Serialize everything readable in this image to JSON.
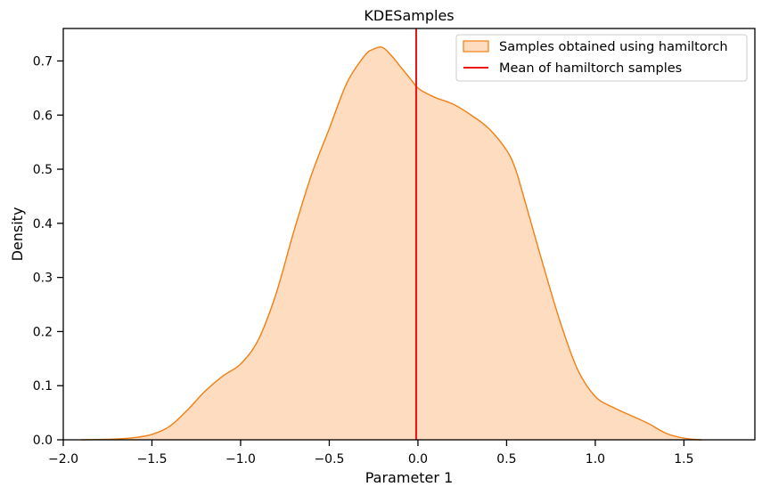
{
  "chart_data": {
    "type": "area",
    "title": "KDESamples",
    "xlabel": "Parameter 1",
    "ylabel": "Density",
    "xlim": [
      -2.0,
      1.9
    ],
    "ylim": [
      0.0,
      0.76
    ],
    "xticks": [
      -2.0,
      -1.5,
      -1.0,
      -0.5,
      0.0,
      0.5,
      1.0,
      1.5
    ],
    "xtick_labels": [
      "−2.0",
      "−1.5",
      "−1.0",
      "−0.5",
      "0.0",
      "0.5",
      "1.0",
      "1.5"
    ],
    "yticks": [
      0.0,
      0.1,
      0.2,
      0.3,
      0.4,
      0.5,
      0.6,
      0.7
    ],
    "ytick_labels": [
      "0.0",
      "0.1",
      "0.2",
      "0.3",
      "0.4",
      "0.5",
      "0.6",
      "0.7"
    ],
    "grid": false,
    "legend_position": "top-right",
    "series": [
      {
        "name": "Samples obtained using hamiltorch",
        "kind": "kde-fill",
        "line_color": "#f07f14",
        "fill_color": "#fedcbf",
        "x": [
          -1.9,
          -1.8,
          -1.7,
          -1.6,
          -1.5,
          -1.4,
          -1.3,
          -1.2,
          -1.1,
          -1.0,
          -0.9,
          -0.8,
          -0.7,
          -0.6,
          -0.5,
          -0.4,
          -0.3,
          -0.25,
          -0.2,
          -0.15,
          -0.1,
          -0.05,
          0.0,
          0.05,
          0.1,
          0.2,
          0.3,
          0.4,
          0.5,
          0.55,
          0.6,
          0.7,
          0.8,
          0.9,
          1.0,
          1.1,
          1.2,
          1.3,
          1.4,
          1.5,
          1.6
        ],
        "y": [
          0.0,
          0.0005,
          0.0015,
          0.004,
          0.01,
          0.025,
          0.055,
          0.09,
          0.118,
          0.14,
          0.185,
          0.27,
          0.385,
          0.49,
          0.575,
          0.66,
          0.71,
          0.722,
          0.725,
          0.71,
          0.69,
          0.67,
          0.65,
          0.64,
          0.632,
          0.62,
          0.6,
          0.575,
          0.535,
          0.5,
          0.445,
          0.33,
          0.22,
          0.13,
          0.08,
          0.06,
          0.045,
          0.03,
          0.012,
          0.003,
          0.0
        ]
      },
      {
        "name": "Mean of hamiltorch samples",
        "kind": "vline",
        "color": "#ee1111",
        "x": -0.01
      }
    ]
  }
}
